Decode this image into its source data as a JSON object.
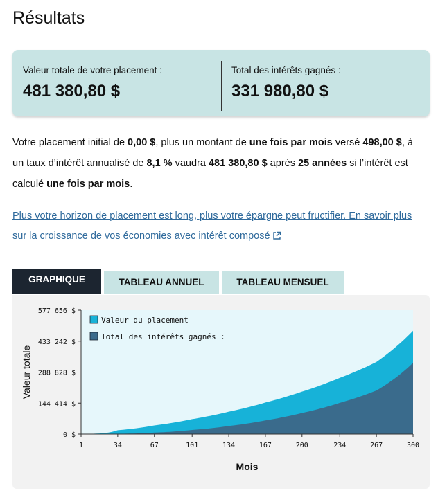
{
  "header": {
    "title": "Résultats"
  },
  "summary": {
    "total_label": "Valeur totale de votre placement :",
    "total_value": "481 380,80 $",
    "interest_label": "Total des intérêts gagnés :",
    "interest_value": "331 980,80 $"
  },
  "description": {
    "p1": "Votre placement initial de ",
    "initial": "0,00 $",
    "p2": ", plus un montant de ",
    "freq1": "une fois par mois",
    "p3": " versé ",
    "contribution": "498,00 $",
    "p4": ", à un taux d’intérêt annualisé de ",
    "rate": "8,1 %",
    "p5": " vaudra ",
    "final": "481 380,80 $",
    "p6": " après ",
    "years": "25 années",
    "p7": " si l’intérêt est calculé ",
    "freq2": "une fois par mois",
    "p8": "."
  },
  "link": {
    "text": "Plus votre horizon de placement est long, plus votre épargne peut fructifier. En savoir plus sur la croissance de vos économies avec intérêt composé",
    "icon": "external-link-icon"
  },
  "tabs": [
    {
      "label": "GRAPHIQUE",
      "active": true
    },
    {
      "label": "TABLEAU ANNUEL",
      "active": false
    },
    {
      "label": "TABLEAU MENSUEL",
      "active": false
    }
  ],
  "colors": {
    "value_series": "#17b2d8",
    "interest_series": "#3a6b8c",
    "plot_bg": "#e6f7fb",
    "summary_bg": "#c8e4e4",
    "active_tab": "#1c2530",
    "link": "#2f6a9c"
  },
  "chart_data": {
    "type": "area",
    "title": "",
    "xlabel": "Mois",
    "ylabel": "Valeur totale",
    "xlim": [
      1,
      300
    ],
    "ylim": [
      0,
      577656
    ],
    "x_ticks": [
      1,
      34,
      67,
      101,
      134,
      167,
      200,
      234,
      267,
      300
    ],
    "y_ticks": [
      0,
      144414,
      288828,
      433242,
      577656
    ],
    "y_tick_labels": [
      "0 $",
      "144 414 $",
      "288 828 $",
      "433 242 $",
      "577 656 $"
    ],
    "legend_position": "top-left",
    "grid": false,
    "series": [
      {
        "name": "Valeur du placement",
        "x": [
          1,
          34,
          67,
          101,
          134,
          167,
          200,
          234,
          267,
          300
        ],
        "values": [
          498,
          18200,
          40500,
          69700,
          104500,
          147000,
          198000,
          262000,
          336000,
          481380.8
        ]
      },
      {
        "name": "Total des intérêts gagnés :",
        "x": [
          1,
          34,
          67,
          101,
          134,
          167,
          200,
          234,
          267,
          300
        ],
        "values": [
          0,
          1300,
          7100,
          19400,
          37800,
          63800,
          98400,
          145500,
          203000,
          331980.8
        ]
      }
    ]
  }
}
